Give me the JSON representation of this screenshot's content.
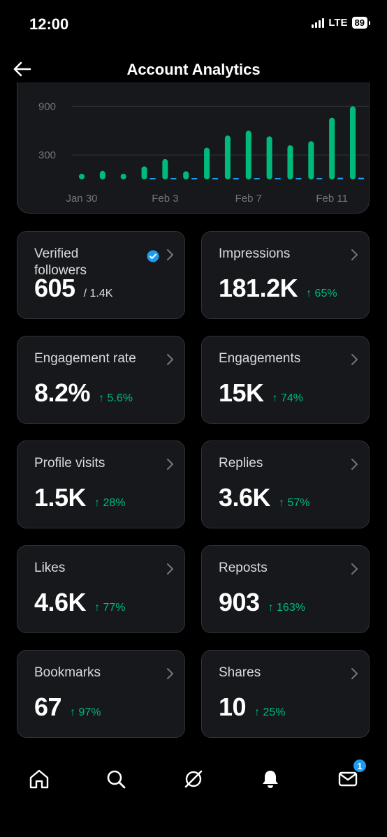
{
  "status": {
    "time": "12:00",
    "network": "LTE",
    "battery": "89"
  },
  "header": {
    "title": "Account Analytics",
    "back_icon": "arrow-left-icon"
  },
  "colors": {
    "accent_green": "#00ba7c",
    "accent_blue": "#1d9bf0",
    "card_bg": "#16181c",
    "border": "#2f3336"
  },
  "chart_data": {
    "type": "bar",
    "title": "",
    "xlabel": "",
    "ylabel": "",
    "y_ticks": [
      "900",
      "300"
    ],
    "ylim": [
      0,
      1100
    ],
    "x_ticks": [
      "Jan 30",
      "Feb 3",
      "Feb 7",
      "Feb 11"
    ],
    "categories": [
      "Jan 30",
      "Jan 31",
      "Feb 1",
      "Feb 2",
      "Feb 3",
      "Feb 4",
      "Feb 5",
      "Feb 6",
      "Feb 7",
      "Feb 8",
      "Feb 9",
      "Feb 10",
      "Feb 11",
      "Feb 12"
    ],
    "series": [
      {
        "color": "#00ba7c",
        "values": [
          70,
          105,
          70,
          160,
          250,
          100,
          390,
          540,
          600,
          530,
          420,
          470,
          760,
          900
        ]
      },
      {
        "color": "#1d9bf0",
        "values": [
          0,
          0,
          0,
          10,
          10,
          10,
          15,
          15,
          15,
          15,
          15,
          15,
          20,
          20
        ]
      }
    ]
  },
  "metrics": [
    {
      "label": "Verified followers",
      "value": "605",
      "sub": "/ 1.4K",
      "change": "",
      "verified_icon": "verified-badge-icon"
    },
    {
      "label": "Impressions",
      "value": "181.2K",
      "sub": "",
      "change": "↑ 65%"
    },
    {
      "label": "Engagement rate",
      "value": "8.2%",
      "sub": "",
      "change": "↑ 5.6%"
    },
    {
      "label": "Engagements",
      "value": "15K",
      "sub": "",
      "change": "↑ 74%"
    },
    {
      "label": "Profile visits",
      "value": "1.5K",
      "sub": "",
      "change": "↑ 28%"
    },
    {
      "label": "Replies",
      "value": "3.6K",
      "sub": "",
      "change": "↑ 57%"
    },
    {
      "label": "Likes",
      "value": "4.6K",
      "sub": "",
      "change": "↑ 77%"
    },
    {
      "label": "Reposts",
      "value": "903",
      "sub": "",
      "change": "↑ 163%"
    },
    {
      "label": "Bookmarks",
      "value": "67",
      "sub": "",
      "change": "↑ 97%"
    },
    {
      "label": "Shares",
      "value": "10",
      "sub": "",
      "change": "↑ 25%"
    }
  ],
  "tabbar": {
    "items": [
      "home-icon",
      "search-icon",
      "grok-icon",
      "notifications-icon",
      "messages-icon"
    ],
    "messages_badge": "1"
  }
}
